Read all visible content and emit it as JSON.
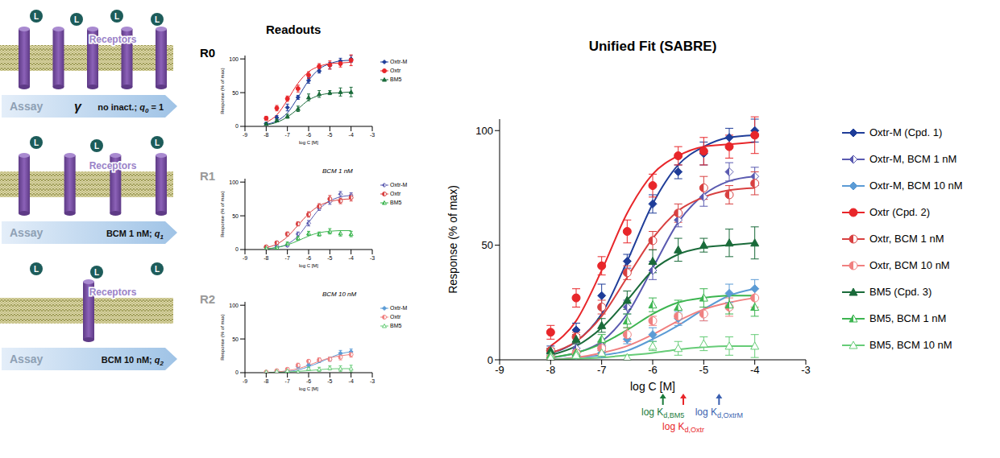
{
  "schematic": {
    "ligand": "L",
    "receptor_label": "Receptors",
    "arrow_label": "Assay",
    "q_symbol": "q",
    "rows": [
      {
        "receptors": 5,
        "ligands": 4,
        "symbol": "γ",
        "condition": "no inact.;",
        "q_sub": "0",
        "q_tail": "= 1"
      },
      {
        "receptors": 4,
        "ligands": 3,
        "condition": "BCM 1 nM;",
        "q_sub": "1"
      },
      {
        "receptors": 1,
        "ligands": 3,
        "condition": "BCM 10 nM;",
        "q_sub": "2"
      }
    ]
  },
  "readouts": {
    "title": "Readouts",
    "x_label": "log C [M]",
    "y_label": "Response (% of max)",
    "panels": [
      {
        "label": "R0",
        "legend": [
          "Oxtr-M",
          "Oxtr",
          "BM5"
        ]
      },
      {
        "label": "R1",
        "subtitle": "BCM 1 nM",
        "legend": [
          "Oxtr-M",
          "Oxtr",
          "BM5"
        ]
      },
      {
        "label": "R2",
        "subtitle": "BCM 10 nM",
        "legend": [
          "Oxtr-M",
          "Oxtr",
          "BM5"
        ]
      }
    ]
  },
  "chart_data": {
    "type": "scatter",
    "title": "Unified Fit (SABRE)",
    "x_label": "log C [M]",
    "y_label": "Response (% of max)",
    "x": [
      -8,
      -7.5,
      -7,
      -6.5,
      -6,
      -5.5,
      -5,
      -4.5,
      -4
    ],
    "xlim": [
      -9,
      -3
    ],
    "xticks": [
      -9,
      -8,
      -7,
      -6,
      -5,
      -4,
      -3
    ],
    "ylim": [
      0,
      105
    ],
    "yticks": [
      0,
      50,
      100
    ],
    "legend": "right",
    "series": [
      {
        "name": "Oxtr-M (Cpd. 1)",
        "color": "#1f3d99",
        "marker": "diamond",
        "panel": "R0",
        "values": [
          4,
          13,
          28,
          43,
          68,
          82,
          90,
          97,
          100
        ],
        "errors": [
          2,
          3,
          5,
          3,
          4,
          3,
          5,
          4,
          5
        ],
        "fit": [
          3,
          8,
          20,
          43,
          68,
          85,
          93,
          97,
          98
        ]
      },
      {
        "name": "Oxtr-M, BCM 1 nM",
        "color": "#5a5ab0",
        "marker": "diamond_half",
        "panel": "R1",
        "values": [
          3,
          5,
          6,
          23,
          39,
          61,
          71,
          82,
          80
        ],
        "errors": [
          1,
          2,
          2,
          3,
          4,
          3,
          4,
          4,
          4
        ],
        "fit": [
          1,
          3,
          8,
          20,
          40,
          60,
          72,
          78,
          80
        ]
      },
      {
        "name": "Oxtr-M, BCM 10 nM",
        "color": "#5b9bd5",
        "marker": "diamond",
        "panel": "R2",
        "values": [
          1,
          2,
          3,
          9,
          11,
          18,
          20,
          29,
          31
        ],
        "errors": [
          1,
          1,
          2,
          2,
          3,
          3,
          3,
          4,
          4
        ],
        "fit": [
          0,
          1,
          2,
          4,
          9,
          15,
          22,
          28,
          31
        ]
      },
      {
        "name": "Oxtr (Cpd. 2)",
        "color": "#e8262a",
        "marker": "circle",
        "panel": "R0",
        "values": [
          12,
          27,
          41,
          56,
          76,
          89,
          91,
          93,
          98
        ],
        "errors": [
          3,
          4,
          4,
          5,
          5,
          4,
          6,
          5,
          8
        ]
      },
      {
        "name": "Oxtr, BCM 1 nM",
        "color": "#d84040",
        "marker": "circle_half",
        "panel": "R1",
        "values": [
          4,
          10,
          23,
          38,
          52,
          64,
          75,
          72,
          77
        ],
        "errors": [
          1,
          2,
          3,
          3,
          4,
          4,
          5,
          4,
          5
        ]
      },
      {
        "name": "Oxtr, BCM 10 nM",
        "color": "#f08080",
        "marker": "circle_half",
        "panel": "R2",
        "values": [
          1,
          3,
          5,
          11,
          17,
          19,
          20,
          23,
          27
        ],
        "errors": [
          1,
          1,
          2,
          3,
          2,
          3,
          3,
          4,
          4
        ]
      },
      {
        "name": "BM5 (Cpd. 3)",
        "color": "#1a6b3a",
        "marker": "triangle",
        "panel": "R0",
        "values": [
          4,
          9,
          15,
          26,
          43,
          48,
          50,
          51,
          51
        ],
        "errors": [
          1,
          2,
          3,
          4,
          5,
          5,
          3,
          6,
          7
        ]
      },
      {
        "name": "BM5, BCM 1 nM",
        "color": "#3cb550",
        "marker": "triangle_half",
        "panel": "R1",
        "values": [
          2,
          3,
          9,
          17,
          24,
          23,
          27,
          24,
          23
        ],
        "errors": [
          1,
          1,
          2,
          3,
          3,
          3,
          4,
          4,
          4
        ]
      },
      {
        "name": "BM5, BCM 10 nM",
        "color": "#66cc77",
        "marker": "triangle_open",
        "panel": "R2",
        "values": [
          1,
          2,
          3,
          1,
          6,
          5,
          7,
          6,
          6
        ],
        "errors": [
          1,
          1,
          1,
          1,
          2,
          3,
          3,
          4,
          5
        ]
      }
    ],
    "fits": [
      [
        3,
        8,
        20,
        43,
        68,
        85,
        93,
        97,
        98
      ],
      [
        1,
        3,
        8,
        20,
        40,
        60,
        72,
        78,
        80
      ],
      [
        0,
        1,
        2,
        4,
        9,
        15,
        22,
        28,
        31
      ],
      [
        6,
        17,
        39,
        64,
        81,
        89,
        93,
        94,
        95
      ],
      [
        3,
        8,
        19,
        36,
        53,
        65,
        71,
        74,
        75
      ],
      [
        0,
        1,
        3,
        6,
        11,
        17,
        22,
        25,
        27
      ],
      [
        2,
        6,
        14,
        26,
        39,
        46,
        49,
        50,
        51
      ],
      [
        1,
        3,
        7,
        13,
        20,
        25,
        27,
        28,
        28
      ],
      [
        0,
        0.5,
        1,
        2,
        3,
        4.5,
        5.5,
        6,
        6
      ]
    ],
    "annotations": [
      {
        "text": "log K",
        "subscript": "d,BM5",
        "x": -5.8,
        "color": "#1a7a3a"
      },
      {
        "text": "log K",
        "subscript": "d,Oxtr",
        "x": -5.4,
        "color": "#e8262a"
      },
      {
        "text": "log K",
        "subscript": "d,OxtrM",
        "x": -4.7,
        "color": "#3a5fb0"
      }
    ]
  }
}
